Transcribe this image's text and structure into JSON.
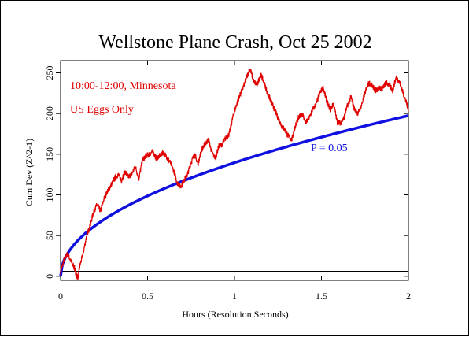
{
  "chart_data": {
    "type": "line",
    "title": "Wellstone Plane Crash, Oct 25 2002",
    "xlabel": "Hours (Resolution Seconds)",
    "ylabel": "Cum Dev (Z^2-1)",
    "xlim": [
      0,
      2
    ],
    "ylim": [
      -5,
      265
    ],
    "x_ticks": [
      0,
      0.5,
      1,
      1.5,
      2
    ],
    "x_tick_labels": [
      "0",
      "0.5",
      "1",
      "1.5",
      "2"
    ],
    "y_ticks": [
      0,
      50,
      100,
      150,
      200,
      250
    ],
    "y_tick_labels": [
      "0",
      "50",
      "100",
      "150",
      "200",
      "250"
    ],
    "annotations": {
      "time_region": "10:00-12:00, Minnesota",
      "data_source": "US Eggs Only",
      "p_label": "P = 0.05"
    },
    "grid": false,
    "colors": {
      "cumdev": "#e00000",
      "p_curve": "#1010e0",
      "baseline": "#000000"
    },
    "series": [
      {
        "role": "cumdev",
        "x": [
          0,
          0.02,
          0.04,
          0.06,
          0.08,
          0.09,
          0.1,
          0.11,
          0.13,
          0.15,
          0.17,
          0.19,
          0.21,
          0.23,
          0.25,
          0.27,
          0.29,
          0.31,
          0.33,
          0.35,
          0.37,
          0.39,
          0.41,
          0.43,
          0.45,
          0.47,
          0.49,
          0.51,
          0.53,
          0.55,
          0.57,
          0.59,
          0.61,
          0.63,
          0.65,
          0.67,
          0.69,
          0.71,
          0.73,
          0.75,
          0.77,
          0.79,
          0.81,
          0.83,
          0.85,
          0.87,
          0.89,
          0.91,
          0.93,
          0.95,
          0.97,
          0.99,
          1.01,
          1.03,
          1.05,
          1.07,
          1.09,
          1.11,
          1.13,
          1.15,
          1.17,
          1.19,
          1.21,
          1.23,
          1.25,
          1.27,
          1.29,
          1.31,
          1.33,
          1.35,
          1.37,
          1.39,
          1.41,
          1.43,
          1.45,
          1.47,
          1.49,
          1.51,
          1.53,
          1.55,
          1.57,
          1.59,
          1.61,
          1.63,
          1.65,
          1.67,
          1.69,
          1.71,
          1.73,
          1.75,
          1.77,
          1.79,
          1.81,
          1.83,
          1.85,
          1.87,
          1.89,
          1.91,
          1.93,
          1.95,
          1.97,
          1.99,
          2.0
        ],
        "y": [
          5,
          20,
          28,
          18,
          10,
          2,
          -2,
          12,
          28,
          50,
          62,
          80,
          88,
          80,
          95,
          105,
          112,
          120,
          125,
          118,
          128,
          122,
          126,
          135,
          120,
          142,
          148,
          150,
          153,
          145,
          148,
          152,
          147,
          140,
          130,
          115,
          110,
          118,
          125,
          140,
          150,
          138,
          155,
          162,
          168,
          152,
          145,
          160,
          162,
          170,
          175,
          195,
          210,
          222,
          232,
          245,
          255,
          240,
          235,
          248,
          238,
          225,
          215,
          205,
          195,
          185,
          180,
          172,
          168,
          185,
          195,
          200,
          188,
          195,
          205,
          212,
          225,
          232,
          215,
          205,
          212,
          190,
          188,
          195,
          210,
          220,
          205,
          200,
          210,
          225,
          238,
          235,
          228,
          232,
          230,
          238,
          235,
          228,
          245,
          238,
          225,
          212,
          205
        ]
      },
      {
        "role": "p_curve",
        "description": "P = 0.05",
        "note": "1.645 * sqrt(2 * n) envelope"
      }
    ]
  }
}
